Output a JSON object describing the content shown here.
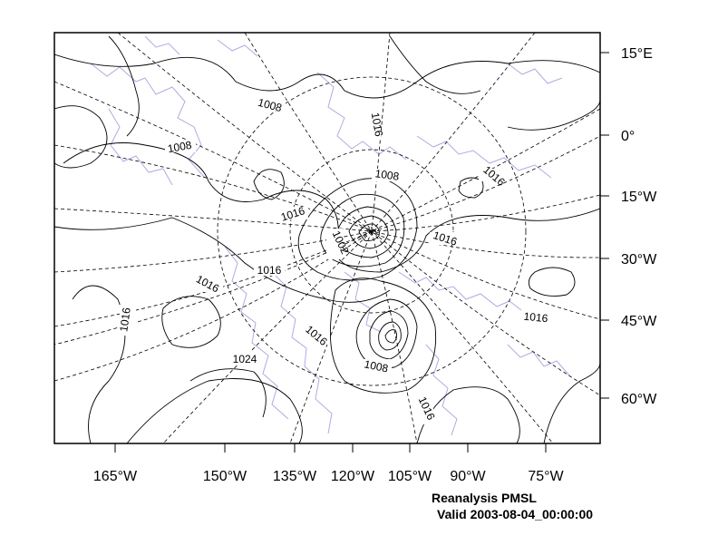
{
  "map": {
    "left_axis_labels": [
      "165°W",
      "150°W",
      "135°W",
      "120°W",
      "105°W",
      "90°W",
      "75°W"
    ],
    "right_axis_labels": [
      "15°E",
      "0°",
      "15°W",
      "30°W",
      "45°W",
      "60°W"
    ],
    "contour_labels": [
      "1008",
      "1016",
      "1008",
      "1008",
      "1016",
      "1016",
      "1016",
      "1002",
      "1016",
      "1016",
      "1016",
      "1016",
      "1016",
      "1016",
      "1024",
      "1008",
      "1016"
    ],
    "colors": {
      "contour": "#000000",
      "coastline": "#b9a6e0",
      "graticule": "#000000"
    }
  },
  "caption": {
    "line1": "Reanalysis PMSL",
    "line2": "Valid 2003-08-04_00:00:00"
  }
}
